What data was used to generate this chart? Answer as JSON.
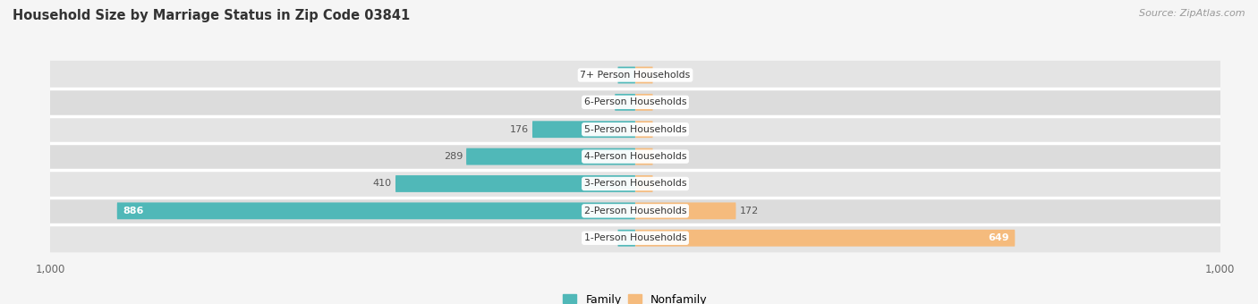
{
  "title": "Household Size by Marriage Status in Zip Code 03841",
  "source": "Source: ZipAtlas.com",
  "categories": [
    "7+ Person Households",
    "6-Person Households",
    "5-Person Households",
    "4-Person Households",
    "3-Person Households",
    "2-Person Households",
    "1-Person Households"
  ],
  "family": [
    0,
    35,
    176,
    289,
    410,
    886,
    0
  ],
  "nonfamily": [
    0,
    0,
    0,
    0,
    0,
    172,
    649
  ],
  "family_color": "#50b8b8",
  "nonfamily_color": "#f5bb7d",
  "row_bg_color": "#e4e4e4",
  "row_bg_alt": "#dcdcdc",
  "white": "#ffffff",
  "fig_bg": "#f5f5f5",
  "title_color": "#333333",
  "label_color": "#555555",
  "title_fontsize": 10.5,
  "source_fontsize": 8,
  "label_fontsize": 8,
  "cat_fontsize": 7.8,
  "xlim": 1000,
  "legend_family": "Family",
  "legend_nonfamily": "Nonfamily"
}
